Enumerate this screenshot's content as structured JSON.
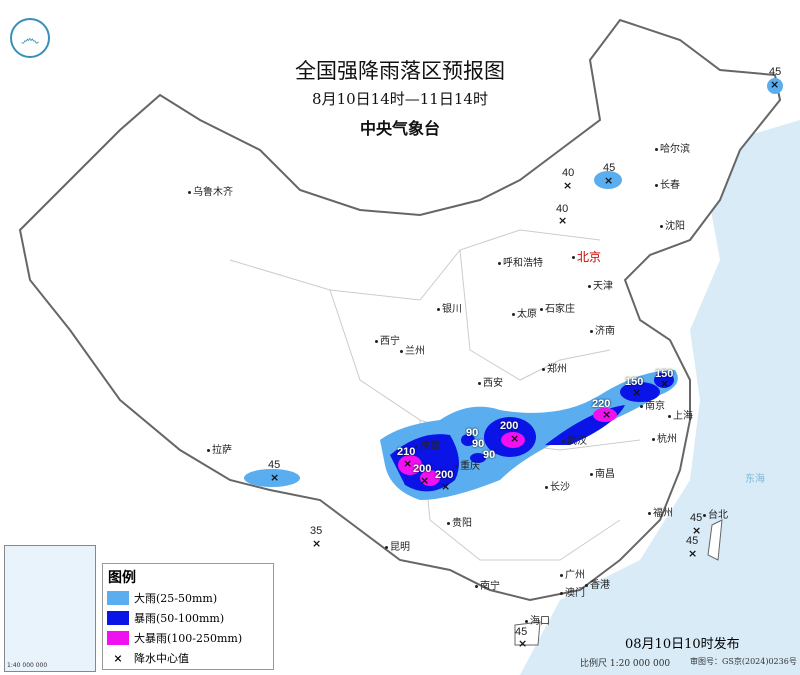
{
  "header": {
    "title": "全国强降雨落区预报图",
    "period": "8月10日14时—11日14时",
    "issuer": "中央气象台",
    "logo": "meteorological-logo"
  },
  "cities": [
    "乌鲁木齐",
    "哈尔滨",
    "长春",
    "沈阳",
    "呼和浩特",
    "北京",
    "天津",
    "石家庄",
    "太原",
    "银川",
    "济南",
    "西宁",
    "兰州",
    "郑州",
    "西安",
    "南京",
    "上海",
    "武汉",
    "杭州",
    "成都",
    "重庆",
    "长沙",
    "南昌",
    "拉萨",
    "贵阳",
    "昆明",
    "福州",
    "台北",
    "南宁",
    "广州",
    "澳门",
    "香港",
    "海口"
  ],
  "sea_label": "东海",
  "rain_centers": [
    "45",
    "40",
    "45",
    "40",
    "210",
    "90",
    "90",
    "90",
    "200",
    "200",
    "200",
    "220",
    "150",
    "150",
    "45",
    "35",
    "45",
    "45",
    "45"
  ],
  "legend": {
    "title": "图例",
    "items": [
      {
        "label": "大雨(25-50mm)",
        "color": "#5aaef0"
      },
      {
        "label": "暴雨(50-100mm)",
        "color": "#0a14e6"
      },
      {
        "label": "大暴雨(100-250mm)",
        "color": "#f010f0"
      },
      {
        "label": "降水中心值",
        "icon": "cross-icon"
      }
    ]
  },
  "footer": {
    "issued": "08月10日10时发布",
    "scale": "比例尺 1:20 000 000",
    "map_no": "审图号：GS京(2024)0236号"
  },
  "inset": {
    "scale": "1:40 000 000"
  }
}
